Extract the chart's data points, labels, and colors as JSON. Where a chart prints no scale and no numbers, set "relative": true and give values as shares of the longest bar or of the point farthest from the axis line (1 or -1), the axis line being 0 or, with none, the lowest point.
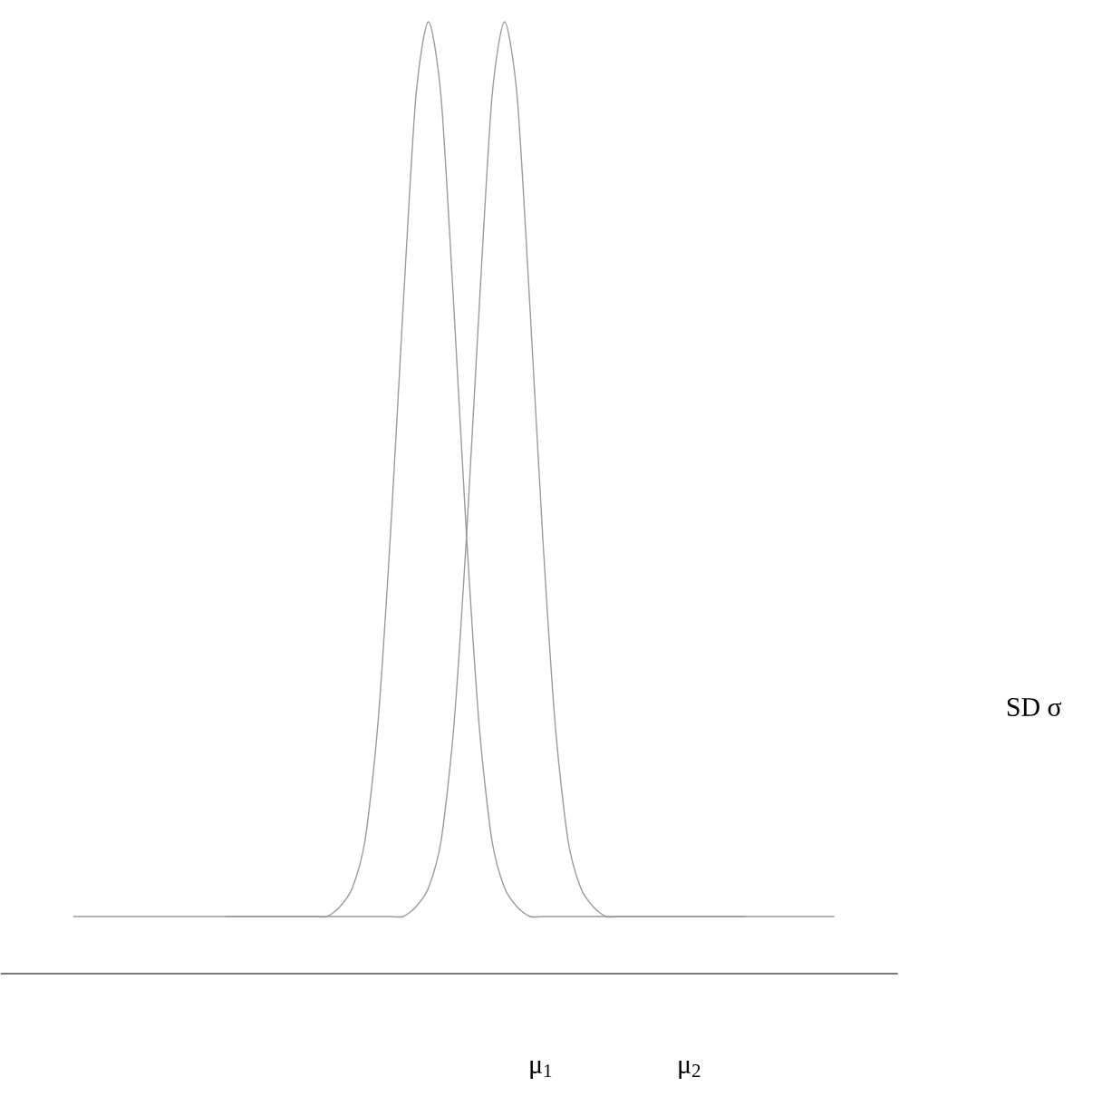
{
  "chart_data": {
    "type": "line",
    "relative": true,
    "categories": [
      null,
      null,
      null,
      null,
      null,
      null,
      null,
      null,
      null,
      null,
      null,
      null,
      null,
      null,
      null,
      null,
      null,
      null,
      null,
      null,
      null,
      null,
      null,
      null,
      null,
      null,
      null,
      null,
      null,
      null,
      null,
      null,
      null,
      null,
      null,
      null,
      null,
      null,
      null,
      null,
      null,
      null,
      null,
      null,
      null,
      null,
      null,
      null,
      null,
      null,
      null,
      null,
      null,
      null,
      null,
      null,
      null,
      null,
      null,
      null,
      null
    ],
    "series": [
      {
        "color": "#9a9a9a",
        "values": [
          0.06,
          0.06,
          0.06,
          0.06,
          0.06,
          0.06,
          0.06,
          0.06,
          0.06,
          0.06,
          0.06,
          0.06,
          0.06,
          0.06,
          0.06,
          0.06,
          0.06,
          0.06,
          0.06,
          0.06,
          0.06,
          0.07,
          0.09,
          0.14,
          0.26,
          0.46,
          0.7,
          0.92,
          1,
          0.92,
          0.7,
          0.46,
          0.26,
          0.14,
          0.09,
          0.07,
          0.06,
          0.06,
          0.06,
          0.06,
          0.06,
          0.06,
          0.06,
          0.06,
          0.06,
          0.06,
          0.06,
          0.06,
          0.06,
          0.06,
          0.06,
          0.06,
          0.06,
          0.06,
          null,
          null,
          null,
          null,
          null,
          null,
          null
        ]
      },
      {
        "color": "#9a9a9a",
        "values": [
          null,
          null,
          null,
          null,
          null,
          null,
          null,
          null,
          null,
          null,
          null,
          null,
          0.06,
          0.06,
          0.06,
          0.06,
          0.06,
          0.06,
          0.06,
          0.06,
          0.06,
          0.06,
          0.06,
          0.06,
          0.06,
          0.06,
          0.06,
          0.07,
          0.09,
          0.14,
          0.26,
          0.46,
          0.7,
          0.92,
          1,
          0.92,
          0.7,
          0.46,
          0.26,
          0.14,
          0.09,
          0.07,
          0.06,
          0.06,
          0.06,
          0.06,
          0.06,
          0.06,
          0.06,
          0.06,
          0.06,
          0.06,
          0.06,
          0.06,
          0.06,
          0.06,
          0.06,
          0.06,
          0.06,
          0.06,
          0.06
        ]
      }
    ],
    "line_style": "solid",
    "annotations": [
      "μ$_{1}$",
      "μ$_{2}$",
      "SD σ"
    ]
  }
}
